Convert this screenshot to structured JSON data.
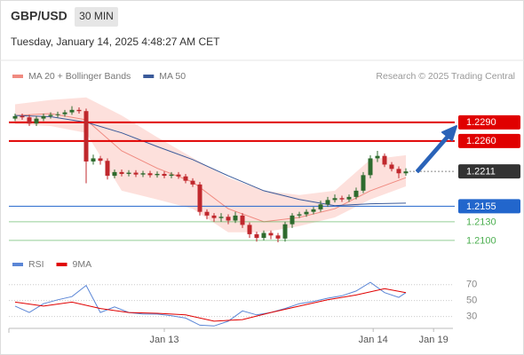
{
  "header": {
    "symbol": "GBP/USD",
    "interval": "30 MIN",
    "datetime": "Tuesday, January 14, 2025 4:48:27 AM CET"
  },
  "chart_data": [
    {
      "type": "candlestick",
      "source": "Research © 2025 Trading Central",
      "xlim": [
        -0.875,
        61.625
      ],
      "ylim": [
        1.2087,
        1.2344
      ],
      "up_color": "#2e6b2e",
      "down_color": "#c0282d",
      "x": [
        0,
        1,
        2,
        3,
        4,
        5,
        6,
        7,
        8,
        9,
        10,
        11,
        12,
        13,
        14,
        15,
        16,
        17,
        18,
        19,
        20,
        21,
        22,
        23,
        24,
        25,
        26,
        27,
        28,
        29,
        30,
        31,
        32,
        33,
        34,
        35,
        36,
        37,
        38,
        39,
        40,
        41,
        42,
        43,
        44,
        45,
        46,
        47,
        48,
        49,
        50,
        51,
        52,
        53,
        54,
        55
      ],
      "open": [
        1.2296,
        1.23,
        1.2298,
        1.2288,
        1.2296,
        1.23,
        1.2302,
        1.2303,
        1.2306,
        1.231,
        1.2308,
        1.2227,
        1.2232,
        1.2228,
        1.2204,
        1.221,
        1.2207,
        1.2209,
        1.2206,
        1.2208,
        1.2205,
        1.2207,
        1.2204,
        1.2206,
        1.2203,
        1.2196,
        1.219,
        1.2146,
        1.214,
        1.2136,
        1.2138,
        1.2132,
        1.214,
        1.2125,
        1.211,
        1.2104,
        1.2112,
        1.2108,
        1.2103,
        1.2126,
        1.214,
        1.2142,
        1.2146,
        1.215,
        1.2158,
        1.2165,
        1.2168,
        1.2166,
        1.217,
        1.218,
        1.2205,
        1.2232,
        1.2236,
        1.2222,
        1.2215,
        1.2208
      ],
      "high": [
        1.2304,
        1.2304,
        1.2302,
        1.23,
        1.2304,
        1.2306,
        1.2307,
        1.231,
        1.2316,
        1.2314,
        1.2312,
        1.2238,
        1.2236,
        1.2232,
        1.2214,
        1.2214,
        1.2213,
        1.2213,
        1.2212,
        1.2212,
        1.2211,
        1.2211,
        1.221,
        1.221,
        1.2207,
        1.22,
        1.2194,
        1.215,
        1.2144,
        1.2144,
        1.2142,
        1.2146,
        1.2144,
        1.2129,
        1.2114,
        1.2116,
        1.2116,
        1.2112,
        1.213,
        1.2144,
        1.2146,
        1.215,
        1.2154,
        1.2164,
        1.217,
        1.2174,
        1.2172,
        1.2174,
        1.2185,
        1.221,
        1.2237,
        1.2244,
        1.224,
        1.2226,
        1.2219,
        1.2216
      ],
      "low": [
        1.2292,
        1.2294,
        1.2284,
        1.2284,
        1.2292,
        1.2296,
        1.2298,
        1.2299,
        1.2302,
        1.2304,
        1.2192,
        1.2222,
        1.2222,
        1.2198,
        1.22,
        1.2203,
        1.2203,
        1.2202,
        1.2202,
        1.2201,
        1.2201,
        1.22,
        1.22,
        1.2199,
        1.2192,
        1.2186,
        1.214,
        1.2134,
        1.213,
        1.213,
        1.2126,
        1.2128,
        1.212,
        1.2104,
        1.2098,
        1.21,
        1.2102,
        1.2097,
        1.2098,
        1.212,
        1.2136,
        1.2138,
        1.2142,
        1.2146,
        1.2154,
        1.2161,
        1.2162,
        1.2162,
        1.2166,
        1.2176,
        1.22,
        1.2226,
        1.2218,
        1.2211,
        1.22,
        1.2204
      ],
      "close": [
        1.23,
        1.2298,
        1.2288,
        1.2296,
        1.23,
        1.2302,
        1.2303,
        1.2306,
        1.231,
        1.2308,
        1.2227,
        1.2232,
        1.2228,
        1.2204,
        1.221,
        1.2207,
        1.2209,
        1.2206,
        1.2208,
        1.2205,
        1.2207,
        1.2204,
        1.2206,
        1.2203,
        1.2196,
        1.219,
        1.2146,
        1.214,
        1.2136,
        1.2138,
        1.2132,
        1.214,
        1.2125,
        1.211,
        1.2104,
        1.2112,
        1.2108,
        1.2103,
        1.2126,
        1.214,
        1.2142,
        1.2146,
        1.215,
        1.2158,
        1.2165,
        1.2168,
        1.2166,
        1.217,
        1.218,
        1.2205,
        1.2232,
        1.2236,
        1.2222,
        1.2215,
        1.2208,
        1.2211
      ],
      "series": [
        {
          "name": "MA 20 + Bollinger Bands",
          "color": "#f08a80",
          "band_color": "#fde0dc",
          "x": [
            0,
            5,
            10,
            15,
            20,
            25,
            30,
            35,
            40,
            45,
            50,
            55
          ],
          "values": [
            1.2301,
            1.2304,
            1.2294,
            1.2244,
            1.2216,
            1.2194,
            1.2151,
            1.213,
            1.2137,
            1.2151,
            1.218,
            1.2201
          ],
          "upper": [
            1.2319,
            1.2326,
            1.233,
            1.2301,
            1.2266,
            1.2233,
            1.2201,
            1.218,
            1.2173,
            1.218,
            1.223,
            1.2237
          ],
          "lower": [
            1.2287,
            1.2284,
            1.2273,
            1.218,
            1.2166,
            1.2151,
            1.2113,
            1.2113,
            1.2123,
            1.2137,
            1.2166,
            1.2187
          ]
        },
        {
          "name": "MA 50",
          "color": "#3a5a9a",
          "x": [
            0,
            5,
            10,
            15,
            20,
            25,
            30,
            35,
            40,
            45,
            50,
            55
          ],
          "values": [
            1.2301,
            1.2299,
            1.229,
            1.2273,
            1.2251,
            1.223,
            1.2204,
            1.218,
            1.2166,
            1.2156,
            1.2159,
            1.216
          ]
        }
      ],
      "levels": [
        {
          "value": 1.229,
          "label": "1.2290",
          "color": "#e00000",
          "style": "solid",
          "box": true
        },
        {
          "value": 1.226,
          "label": "1.2260",
          "color": "#e00000",
          "style": "solid",
          "box": true
        },
        {
          "value": 1.2211,
          "label": "1.2211",
          "color": "#333333",
          "style": "dotted",
          "box": true
        },
        {
          "value": 1.2155,
          "label": "1.2155",
          "color": "#2266cc",
          "style": "solid",
          "box": true
        },
        {
          "value": 1.213,
          "label": "1.2130",
          "color": "#4caf50",
          "style": "solid",
          "box": false
        },
        {
          "value": 1.21,
          "label": "1.2100",
          "color": "#4caf50",
          "style": "solid",
          "box": false
        }
      ]
    },
    {
      "type": "line",
      "xlim": [
        -0.875,
        61.625
      ],
      "ylim": [
        15,
        82
      ],
      "yticks": [
        70,
        50,
        30
      ],
      "grid": true,
      "xticks": [
        {
          "value": 21,
          "label": "Jan 13"
        },
        {
          "value": 50.4,
          "label": "Jan 14"
        },
        {
          "value": 58.9,
          "label": "Jan 19"
        }
      ],
      "series": [
        {
          "name": "RSI",
          "color": "#5b86d6",
          "x": [
            0,
            2,
            4,
            6,
            8,
            10,
            12,
            14,
            16,
            18,
            20,
            22,
            24,
            26,
            28,
            30,
            32,
            34,
            36,
            38,
            40,
            42,
            44,
            46,
            48,
            50,
            52,
            54,
            55
          ],
          "values": [
            43,
            35,
            46,
            51,
            55,
            69,
            35,
            42,
            35,
            33,
            33,
            31,
            28,
            19,
            18,
            24,
            37,
            32,
            35,
            40,
            46,
            49,
            53,
            56,
            62,
            73,
            60,
            54,
            60
          ]
        },
        {
          "name": "9MA",
          "color": "#e00000",
          "x": [
            0,
            4,
            8,
            12,
            16,
            20,
            24,
            28,
            32,
            36,
            40,
            44,
            48,
            52,
            55
          ],
          "values": [
            48,
            43,
            48,
            40,
            35,
            34,
            32,
            24,
            26,
            35,
            43,
            51,
            57,
            65,
            60
          ]
        }
      ]
    }
  ]
}
